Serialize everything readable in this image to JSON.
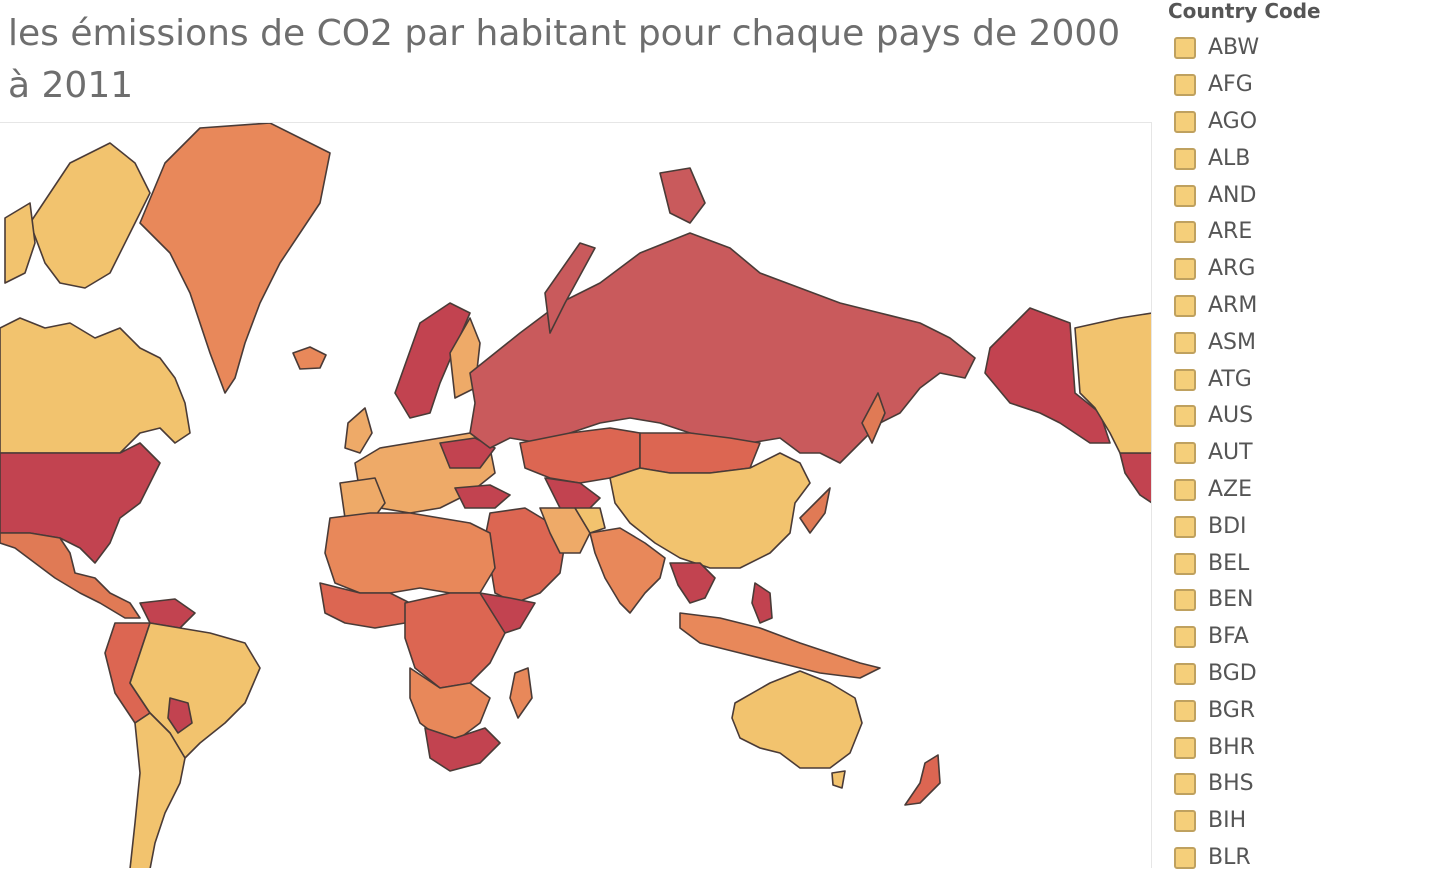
{
  "title": "les émissions de CO2 par habitant pour chaque pays de 2000 à 2011",
  "legend": {
    "title": "Country Code",
    "swatch_color": "#f5cf7a",
    "items": [
      "ABW",
      "AFG",
      "AGO",
      "ALB",
      "AND",
      "ARE",
      "ARG",
      "ARM",
      "ASM",
      "ATG",
      "AUS",
      "AUT",
      "AZE",
      "BDI",
      "BEL",
      "BEN",
      "BFA",
      "BGD",
      "BGR",
      "BHR",
      "BHS",
      "BIH",
      "BLR"
    ]
  },
  "colors": {
    "light": "#f2c36e",
    "light_orange": "#eeaa68",
    "orange": "#e8885a",
    "red_orange": "#dc6652",
    "red": "#c95a5c",
    "dark_red": "#c24350",
    "outline": "#4a3b37",
    "background": "#ffffff"
  },
  "map": {
    "regions": [
      {
        "name": "greenland",
        "color": "#e8885a"
      },
      {
        "name": "canada",
        "color": "#f2c36e"
      },
      {
        "name": "usa",
        "color": "#c24350"
      },
      {
        "name": "alaska",
        "color": "#c24350"
      },
      {
        "name": "mexico",
        "color": "#e07a55"
      },
      {
        "name": "brazil",
        "color": "#f2c36e"
      },
      {
        "name": "argentina",
        "color": "#f2c36e"
      },
      {
        "name": "europe",
        "color": "#eeaa68"
      },
      {
        "name": "russia",
        "color": "#c95a5c"
      },
      {
        "name": "china",
        "color": "#f2c36e"
      },
      {
        "name": "india",
        "color": "#e8885a"
      },
      {
        "name": "africa-north",
        "color": "#e8885a"
      },
      {
        "name": "africa-central",
        "color": "#dc6652"
      },
      {
        "name": "south-africa",
        "color": "#c24350"
      },
      {
        "name": "australia",
        "color": "#f2c36e"
      },
      {
        "name": "new-zealand",
        "color": "#dc6652"
      },
      {
        "name": "middle-east",
        "color": "#dc6652"
      },
      {
        "name": "southeast-asia",
        "color": "#c24350"
      },
      {
        "name": "japan",
        "color": "#e07a55"
      },
      {
        "name": "indonesia",
        "color": "#e8885a"
      }
    ]
  }
}
